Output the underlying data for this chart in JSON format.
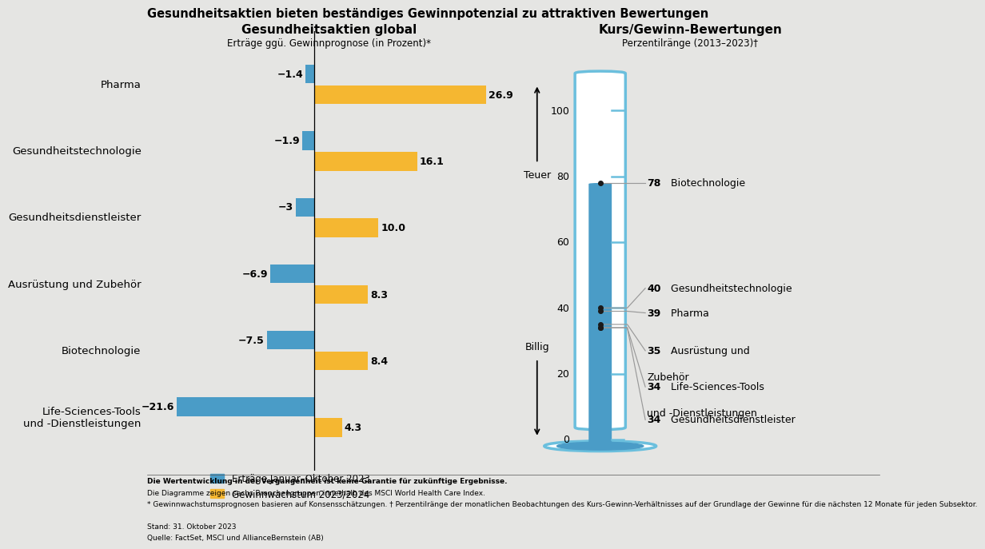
{
  "title": "Gesundheitsaktien bieten beständiges Gewinnpotenzial zu attraktiven Bewertungen",
  "bg_color": "#e5e5e3",
  "left_title": "Gesundheitsaktien global",
  "left_subtitle": "Erträge ggü. Gewinnprognose (in Prozent)*",
  "right_title": "Kurs/Gewinn-Bewertungen",
  "right_subtitle": "Perzentilränge (2013–2023)†",
  "categories": [
    "Pharma",
    "Gesundheitstechnologie",
    "Gesundheitsdienstleister",
    "Ausrüstung und Zubehör",
    "Biotechnologie",
    "Life-Sciences-Tools\nund -Dienstleistungen"
  ],
  "blue_values": [
    -1.4,
    -1.9,
    -3.0,
    -6.9,
    -7.5,
    -21.6
  ],
  "orange_values": [
    26.9,
    16.1,
    10.0,
    8.3,
    8.4,
    4.3
  ],
  "blue_color": "#4a9cc7",
  "orange_color": "#f5b731",
  "bar_height": 0.28,
  "legend_blue": "Erträge Januar–Oktober 2023",
  "legend_orange": "Gewinnwachstum 2023/2024",
  "thermometer_values": [
    78,
    40,
    39,
    35,
    34,
    34
  ],
  "thermometer_labels": [
    "Biotechnologie",
    "Gesundheitstechnologie",
    "Pharma",
    "Ausrüstung und\nZubehör",
    "Life-Sciences-Tools\nund -Dienstleistungen",
    "Gesundheitsdienstleister"
  ],
  "thermo_color": "#4a9cc7",
  "thermo_outline": "#6bbfdd",
  "thermo_inner_outline": "#6bbfdd",
  "teuer_label": "Teuer",
  "billig_label": "Billig",
  "tick_values": [
    0,
    20,
    40,
    60,
    80,
    100
  ],
  "footnote1": "Die Wertentwicklung in der Vergangenheit ist keine Garantie für zukünftige Ergebnisse.",
  "footnote2": "Die Diagramme zeigen sechs Branchengruppen innerhalb des MSCI World Health Care Index.",
  "footnote3": "* Gewinnwachstumsprognosen basieren auf Konsensschätzungen. † Perzentilränge der monatlichen Beobachtungen des Kurs-Gewinn-Verhältnisses auf der Grundlage der Gewinne für die nächsten 12 Monate für jeden Subsektor.",
  "footnote4": "Stand: 31. Oktober 2023",
  "footnote5": "Quelle: FactSet, MSCI und AllianceBernstein (AB)"
}
